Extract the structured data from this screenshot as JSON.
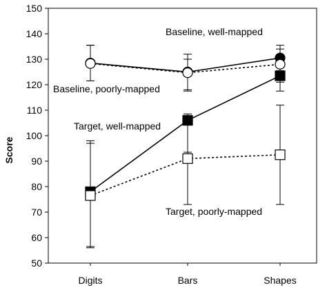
{
  "chart_data": {
    "type": "line",
    "title": "",
    "xlabel": "",
    "ylabel": "Score",
    "categories": [
      "Digits",
      "Bars",
      "Shapes"
    ],
    "ylim": [
      50,
      150
    ],
    "yticks": [
      50,
      60,
      70,
      80,
      90,
      100,
      110,
      120,
      130,
      140,
      150
    ],
    "grid": false,
    "legend": "none",
    "series": [
      {
        "name": "Baseline, well-mapped",
        "values": [
          128.5,
          125,
          130.5
        ],
        "error_low": [
          121.5,
          118,
          125.5
        ],
        "error_high": [
          135.5,
          132,
          135.5
        ],
        "marker": "circle",
        "fill": "#000000",
        "line": "solid"
      },
      {
        "name": "Baseline, poorly-mapped",
        "values": [
          128.3,
          124.7,
          128
        ],
        "error_low": [
          121.5,
          117.5,
          121
        ],
        "error_high": [
          135.5,
          130,
          134
        ],
        "marker": "circle",
        "fill": "#ffffff",
        "line": "dotted"
      },
      {
        "name": "Target, well-mapped",
        "values": [
          78,
          106,
          123.5
        ],
        "error_low": [
          56.5,
          93.5,
          117.5
        ],
        "error_high": [
          98,
          108.5,
          129
        ],
        "marker": "square",
        "fill": "#000000",
        "line": "solid"
      },
      {
        "name": "Target, poorly-mapped",
        "values": [
          76.5,
          91,
          92.5
        ],
        "error_low": [
          56,
          73,
          73
        ],
        "error_high": [
          97,
          108.5,
          112
        ],
        "marker": "square",
        "fill": "#ffffff",
        "line": "dotted"
      }
    ]
  }
}
